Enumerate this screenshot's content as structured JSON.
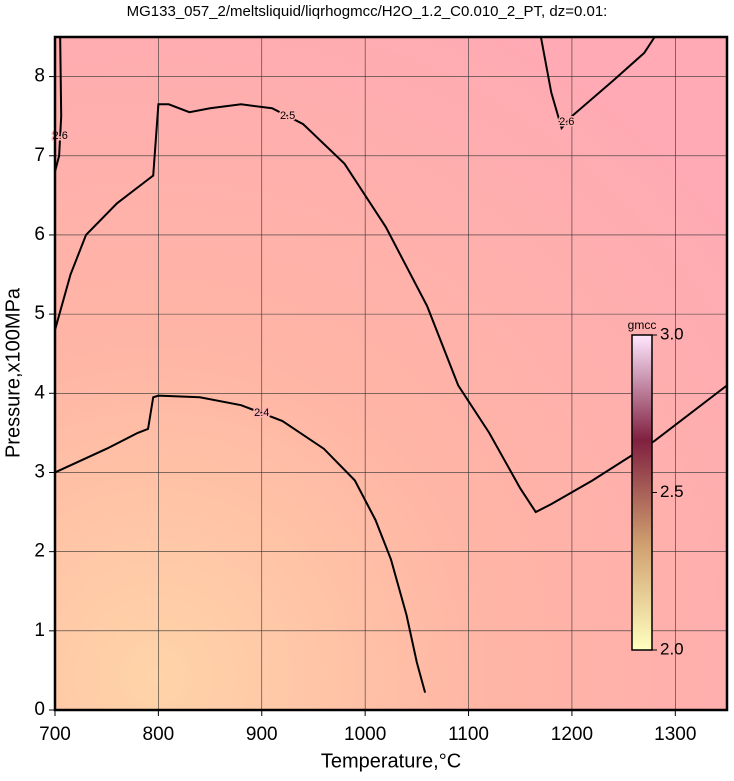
{
  "chart_data": {
    "type": "contour",
    "title": "MG133_057_2/meltsliquid/liqrhogmcc/H2O_1.2_C0.010_2_PT, dz=0.01:",
    "x_label": "Temperature,°C",
    "y_label": "Pressure,x100MPa",
    "xlim": [
      700,
      1350
    ],
    "ylim": [
      0,
      8.5
    ],
    "xticks": [
      700,
      800,
      900,
      1000,
      1100,
      1200,
      1300
    ],
    "yticks": [
      0,
      1,
      2,
      3,
      4,
      5,
      6,
      7,
      8
    ],
    "grid": true,
    "contours": [
      {
        "level": 2.4,
        "x": [
          700,
          750,
          780,
          790,
          795,
          800,
          840,
          880,
          920,
          960,
          990,
          1010,
          1025,
          1040,
          1050,
          1058
        ],
        "y": [
          3.0,
          3.3,
          3.5,
          3.55,
          3.95,
          3.97,
          3.95,
          3.85,
          3.65,
          3.3,
          2.9,
          2.4,
          1.9,
          1.2,
          0.6,
          0.22
        ]
      },
      {
        "level": 2.5,
        "x": [
          700,
          715,
          730,
          760,
          790,
          795,
          800,
          810,
          830,
          850,
          880,
          910,
          940,
          980,
          1020,
          1060,
          1090,
          1120,
          1150,
          1165,
          1180,
          1220,
          1280,
          1350
        ],
        "y": [
          4.8,
          5.5,
          6.0,
          6.4,
          6.7,
          6.75,
          7.65,
          7.65,
          7.55,
          7.6,
          7.65,
          7.6,
          7.4,
          6.9,
          6.1,
          5.1,
          4.1,
          3.5,
          2.8,
          2.5,
          2.6,
          2.9,
          3.4,
          4.1
        ]
      },
      {
        "level": 2.6,
        "x": [
          1170,
          1180,
          1190,
          1200,
          1240,
          1270,
          1280
        ],
        "y": [
          8.5,
          7.8,
          7.35,
          7.5,
          7.95,
          8.3,
          8.5
        ]
      },
      {
        "level": 2.6,
        "x": [
          705,
          706,
          704,
          700
        ],
        "y": [
          8.5,
          7.5,
          7.0,
          6.8
        ]
      }
    ],
    "colorbar": {
      "label": "gmcc",
      "lim": [
        2.0,
        3.0
      ],
      "ticks": [
        {
          "value": 2.0,
          "label": "2.0"
        },
        2.5,
        {
          "value": 3.0,
          "label": "3.0"
        }
      ],
      "colors": [
        "#ffffc0",
        "#d0a070",
        "#802040",
        "#ffe8ff"
      ]
    }
  }
}
